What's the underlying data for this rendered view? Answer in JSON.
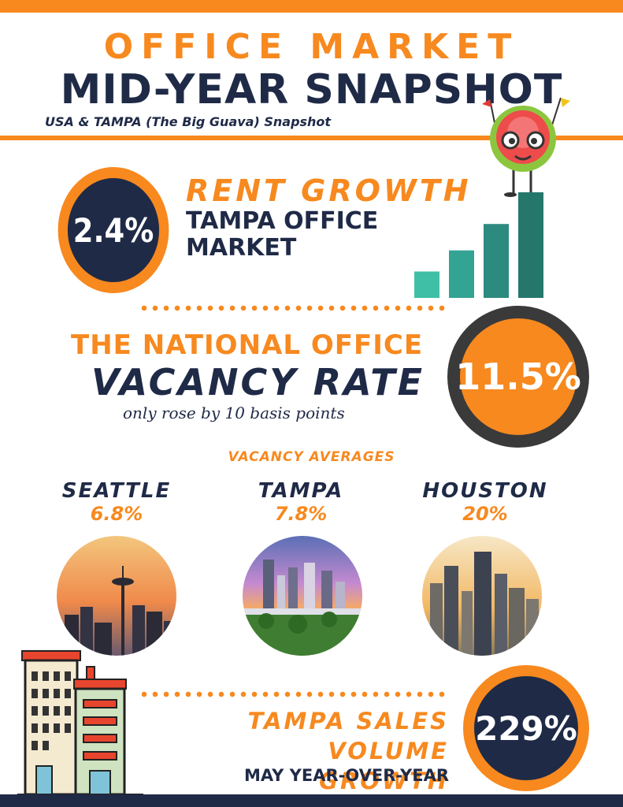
{
  "header": {
    "title_line1": "OFFICE MARKET",
    "title_line2": "MID-YEAR SNAPSHOT",
    "subtitle": "USA & TAMPA (The Big Guava) Snapshot"
  },
  "rent_growth": {
    "value": "2.4%",
    "heading": "RENT GROWTH",
    "subheading": "TAMPA OFFICE MARKET",
    "bar_levels": [
      0.25,
      0.45,
      0.7,
      1.0
    ],
    "bar_colors": [
      "#3fbfa6",
      "#33a394",
      "#2d8a7e",
      "#25776c"
    ]
  },
  "national_vacancy": {
    "heading": "THE NATIONAL OFFICE",
    "big": "VACANCY RATE",
    "note": "only rose by 10 basis points",
    "value": "11.5%"
  },
  "vacancy_averages": {
    "label": "VACANCY AVERAGES",
    "cities": [
      {
        "name": "SEATTLE",
        "value": "6.8%",
        "icon": "seattle-skyline-photo"
      },
      {
        "name": "TAMPA",
        "value": "7.8%",
        "icon": "tampa-skyline-photo"
      },
      {
        "name": "HOUSTON",
        "value": "20%",
        "icon": "houston-skyline-photo"
      }
    ]
  },
  "sales_volume": {
    "heading_line1": "TAMPA SALES",
    "heading_line2": "VOLUME GROWTH",
    "subheading": "MAY YEAR-OVER-YEAR",
    "value": "229%"
  },
  "colors": {
    "orange": "#f7891f",
    "navy": "#1f2a47",
    "dark_ring": "#3a3a3a"
  },
  "icons": [
    "guava-mascot-icon",
    "bar-chart-icon",
    "office-buildings-icon"
  ]
}
